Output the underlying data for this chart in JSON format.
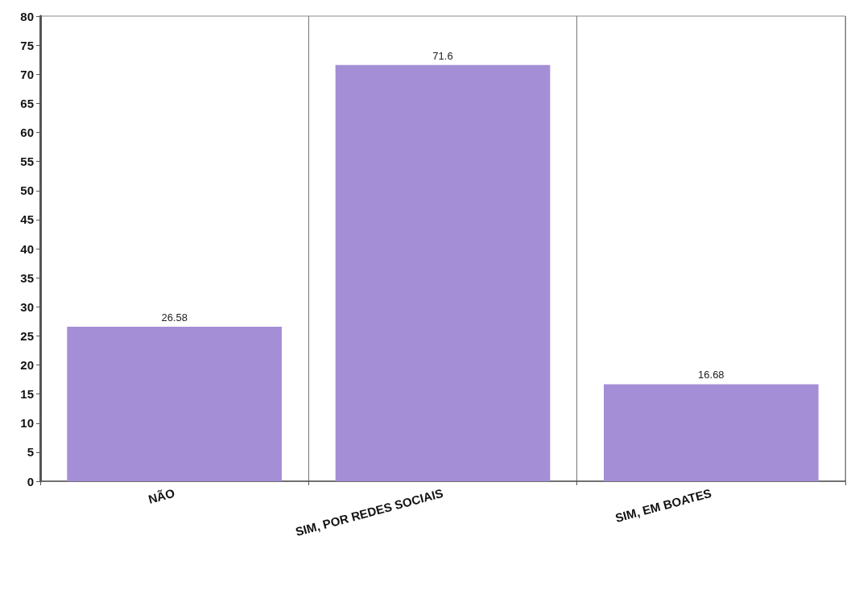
{
  "chart_data": {
    "type": "bar",
    "categories": [
      "NÃO",
      "SIM, POR REDES SOCIAIS",
      "SIM, EM BOATES"
    ],
    "values": [
      26.58,
      71.6,
      16.68
    ],
    "color": "#a48ed6",
    "ylim": [
      0,
      80
    ],
    "yticks": [
      0,
      5,
      10,
      15,
      20,
      25,
      30,
      35,
      40,
      45,
      50,
      55,
      60,
      65,
      70,
      75,
      80
    ],
    "grid": "x",
    "data_labels": true
  }
}
